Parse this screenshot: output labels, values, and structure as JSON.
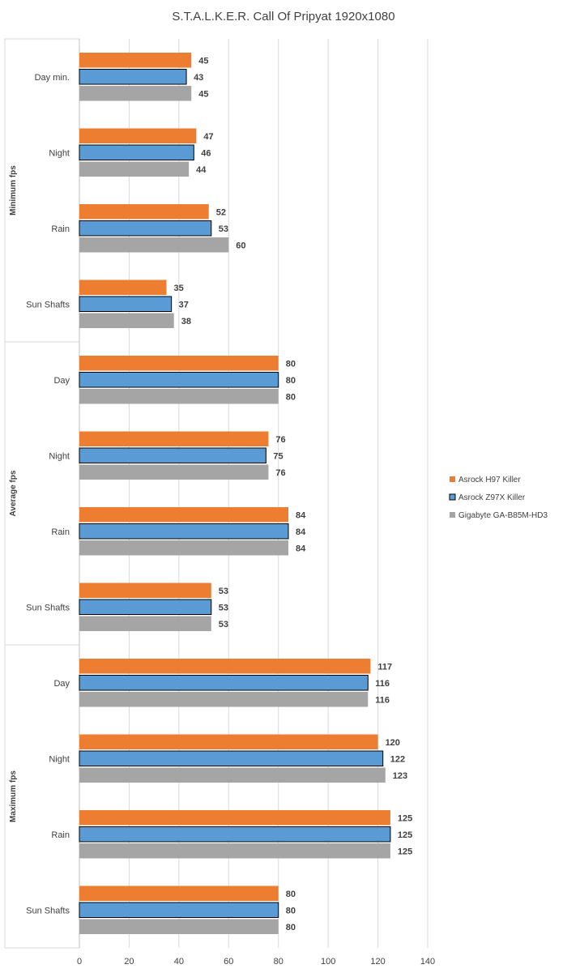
{
  "chart_data": {
    "type": "bar",
    "orientation": "horizontal",
    "title": "S.T.A.L.K.E.R. Call Of Pripyat 1920x1080",
    "xlim": [
      0,
      140
    ],
    "xticks": [
      0,
      20,
      40,
      60,
      80,
      100,
      120,
      140
    ],
    "grid": true,
    "legend_position": "right",
    "groups": [
      {
        "label": "Minimum fps",
        "categories": [
          "Day min.",
          "Night",
          "Rain",
          "Sun Shafts"
        ]
      },
      {
        "label": "Average fps",
        "categories": [
          "Day",
          "Night",
          "Rain",
          "Sun Shafts"
        ]
      },
      {
        "label": "Maximum fps",
        "categories": [
          "Day",
          "Night",
          "Rain",
          "Sun Shafts"
        ]
      }
    ],
    "series": [
      {
        "name": "Asrock H97 Killer",
        "color": "#ED7D31",
        "values": [
          45,
          47,
          52,
          35,
          80,
          76,
          84,
          53,
          117,
          120,
          125,
          80
        ]
      },
      {
        "name": "Asrock Z97X Killer",
        "color": "#5B9BD5",
        "values": [
          43,
          46,
          53,
          37,
          80,
          75,
          84,
          53,
          116,
          122,
          125,
          80
        ]
      },
      {
        "name": "Gigabyte GA-B85M-HD3",
        "color": "#A5A5A5",
        "values": [
          45,
          44,
          60,
          38,
          80,
          76,
          84,
          53,
          116,
          123,
          125,
          80
        ]
      }
    ]
  }
}
